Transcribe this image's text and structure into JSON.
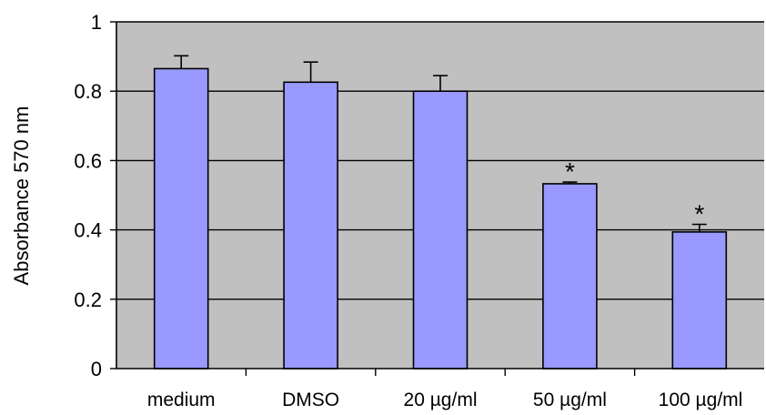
{
  "chart_data": {
    "type": "bar",
    "categories": [
      "medium",
      "DMSO",
      "20 µg/ml",
      "50 µg/ml",
      "100 µg/ml"
    ],
    "values": [
      0.865,
      0.826,
      0.8,
      0.533,
      0.394
    ],
    "errors": [
      0.037,
      0.058,
      0.045,
      0.005,
      0.022
    ],
    "annotations": [
      "",
      "",
      "",
      "*",
      "*"
    ],
    "ylabel": "Absorbance 570 nm",
    "xlabel": "",
    "ylim": [
      0,
      1
    ],
    "yticks": [
      0,
      0.2,
      0.4,
      0.6,
      0.8,
      1
    ],
    "ytick_labels": [
      "0",
      "0.2",
      "0.4",
      "0.6",
      "0.8",
      "1"
    ],
    "grid": true,
    "colors": {
      "bar": "#9999ff",
      "plot_background": "#c0c0c0",
      "bar_outline": "#000000"
    }
  }
}
